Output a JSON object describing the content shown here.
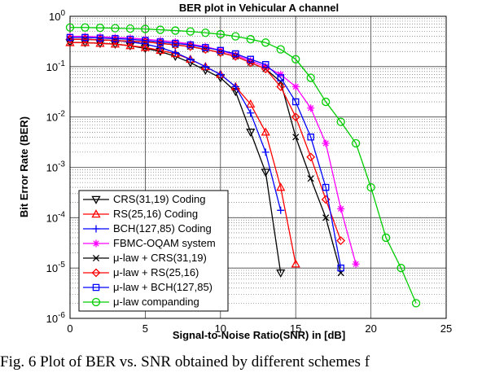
{
  "chart_data": {
    "type": "line",
    "title": "BER plot in Vehicular A channel",
    "x_label": "Signal-to-Noise Ratio(SNR) in [dB]",
    "y_label": "Bit Error Rate (BER)",
    "caption": "Fig. 6 Plot of BER vs. SNR obtained by different schemes f",
    "log_y": true,
    "grid": true,
    "legend": "lower left",
    "xlim": [
      0,
      25
    ],
    "xticks": [
      0,
      5,
      10,
      15,
      20,
      25
    ],
    "ylim": [
      1e-06,
      1
    ],
    "yticks": [
      {
        "value": 1e-06,
        "label": "10",
        "exponent": "-6"
      },
      {
        "value": 1e-05,
        "label": "10",
        "exponent": "-5"
      },
      {
        "value": 0.0001,
        "label": "10",
        "exponent": "-4"
      },
      {
        "value": 0.001,
        "label": "10",
        "exponent": "-3"
      },
      {
        "value": 0.01,
        "label": "10",
        "exponent": "-2"
      },
      {
        "value": 0.1,
        "label": "10",
        "exponent": "-1"
      },
      {
        "value": 1,
        "label": "10",
        "exponent": "0"
      }
    ],
    "series": [
      {
        "name": "CRS(31,19) Coding",
        "color": "#000000",
        "marker": "triangle-down",
        "x": [
          0,
          1,
          2,
          3,
          4,
          5,
          6,
          7,
          8,
          9,
          10,
          11,
          12,
          13,
          14
        ],
        "values": [
          0.3,
          0.3,
          0.29,
          0.28,
          0.26,
          0.23,
          0.2,
          0.16,
          0.12,
          0.085,
          0.06,
          0.032,
          0.005,
          0.0008,
          8e-06
        ]
      },
      {
        "name": "RS(25,16) Coding",
        "color": "#ff0000",
        "marker": "triangle-up",
        "x": [
          0,
          1,
          2,
          3,
          4,
          5,
          6,
          7,
          8,
          9,
          10,
          11,
          12,
          13,
          14,
          15
        ],
        "values": [
          0.3,
          0.3,
          0.29,
          0.28,
          0.26,
          0.24,
          0.21,
          0.18,
          0.14,
          0.1,
          0.07,
          0.04,
          0.018,
          0.005,
          0.0004,
          1.2e-05
        ]
      },
      {
        "name": "BCH(127,85) Coding",
        "color": "#0000ff",
        "marker": "plus",
        "x": [
          0,
          1,
          2,
          3,
          4,
          5,
          6,
          7,
          8,
          9,
          10,
          11,
          12,
          13,
          14
        ],
        "values": [
          0.35,
          0.35,
          0.34,
          0.33,
          0.31,
          0.28,
          0.24,
          0.19,
          0.14,
          0.1,
          0.07,
          0.04,
          0.012,
          0.002,
          0.00014
        ]
      },
      {
        "name": "FBMC-OQAM system",
        "color": "#ff00ff",
        "marker": "asterisk",
        "x": [
          0,
          1,
          2,
          3,
          4,
          5,
          6,
          7,
          8,
          9,
          10,
          11,
          12,
          13,
          14,
          15,
          16,
          17,
          18,
          19
        ],
        "values": [
          0.4,
          0.4,
          0.39,
          0.38,
          0.37,
          0.35,
          0.33,
          0.31,
          0.28,
          0.25,
          0.21,
          0.17,
          0.13,
          0.1,
          0.07,
          0.04,
          0.015,
          0.003,
          0.00015,
          1.2e-05
        ]
      },
      {
        "name": "μ-law + CRS(31,19)",
        "color": "#000000",
        "marker": "x",
        "x": [
          0,
          1,
          2,
          3,
          4,
          5,
          6,
          7,
          8,
          9,
          10,
          11,
          12,
          13,
          14,
          15,
          16,
          17,
          18
        ],
        "values": [
          0.35,
          0.35,
          0.34,
          0.33,
          0.32,
          0.31,
          0.29,
          0.27,
          0.25,
          0.22,
          0.19,
          0.16,
          0.12,
          0.09,
          0.05,
          0.004,
          0.0006,
          0.0001,
          8e-06
        ]
      },
      {
        "name": "μ-law + RS(25,16)",
        "color": "#ff0000",
        "marker": "diamond",
        "x": [
          0,
          1,
          2,
          3,
          4,
          5,
          6,
          7,
          8,
          9,
          10,
          11,
          12,
          13,
          14,
          15,
          16,
          17,
          18
        ],
        "values": [
          0.35,
          0.35,
          0.34,
          0.33,
          0.32,
          0.31,
          0.29,
          0.27,
          0.25,
          0.22,
          0.19,
          0.16,
          0.12,
          0.09,
          0.04,
          0.01,
          0.0016,
          0.00023,
          3.5e-05
        ]
      },
      {
        "name": "μ-law + BCH(127,85)",
        "color": "#0000ff",
        "marker": "square",
        "x": [
          0,
          1,
          2,
          3,
          4,
          5,
          6,
          7,
          8,
          9,
          10,
          11,
          12,
          13,
          14,
          15,
          16,
          17,
          18
        ],
        "values": [
          0.38,
          0.38,
          0.37,
          0.36,
          0.35,
          0.33,
          0.31,
          0.29,
          0.27,
          0.24,
          0.21,
          0.18,
          0.14,
          0.11,
          0.06,
          0.02,
          0.004,
          0.0004,
          1e-05
        ]
      },
      {
        "name": "μ-law companding",
        "color": "#00cc00",
        "marker": "circle",
        "x": [
          0,
          1,
          2,
          3,
          4,
          5,
          6,
          7,
          8,
          9,
          10,
          11,
          12,
          13,
          14,
          15,
          16,
          17,
          18,
          19,
          20,
          21,
          22,
          23
        ],
        "values": [
          0.6,
          0.6,
          0.59,
          0.58,
          0.57,
          0.56,
          0.54,
          0.52,
          0.5,
          0.47,
          0.44,
          0.4,
          0.35,
          0.3,
          0.22,
          0.14,
          0.06,
          0.02,
          0.008,
          0.003,
          0.0004,
          4e-05,
          1e-05,
          2e-06
        ]
      }
    ]
  }
}
